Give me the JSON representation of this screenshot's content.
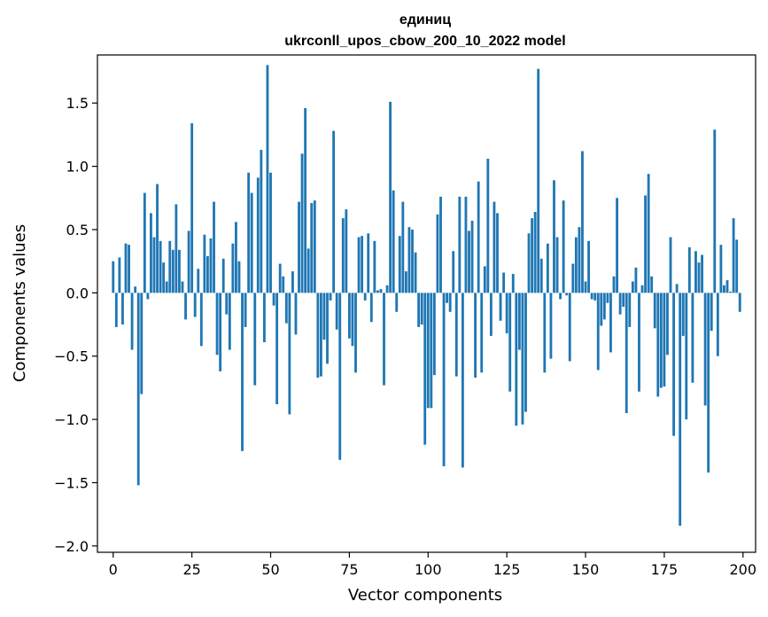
{
  "chart_data": {
    "type": "bar",
    "title": "единиц",
    "subtitle": "ukrconll_upos_cbow_200_10_2022 model",
    "xlabel": "Vector components",
    "ylabel": "Components values",
    "xlim": [
      -5,
      204
    ],
    "ylim": [
      -2.05,
      1.88
    ],
    "xticks": [
      0,
      25,
      50,
      75,
      100,
      125,
      150,
      175,
      200
    ],
    "yticks": [
      -2.0,
      -1.5,
      -1.0,
      -0.5,
      0.0,
      0.5,
      1.0,
      1.5
    ],
    "xtick_labels": [
      "0",
      "25",
      "50",
      "75",
      "100",
      "125",
      "150",
      "175",
      "200"
    ],
    "ytick_labels": [
      "−2.0",
      "−1.5",
      "−1.0",
      "−0.5",
      "0.0",
      "0.5",
      "1.0",
      "1.5"
    ],
    "bar_color": "#1f77b4",
    "grid": false,
    "values": [
      0.25,
      -0.27,
      0.28,
      -0.25,
      0.39,
      0.38,
      -0.45,
      0.05,
      -1.52,
      -0.8,
      0.79,
      -0.05,
      0.63,
      0.44,
      0.86,
      0.41,
      0.24,
      0.09,
      0.41,
      0.34,
      0.7,
      0.34,
      0.09,
      -0.21,
      0.49,
      1.34,
      -0.19,
      0.19,
      -0.42,
      0.46,
      0.29,
      0.43,
      0.72,
      -0.49,
      -0.62,
      0.27,
      -0.17,
      -0.45,
      0.39,
      0.56,
      0.25,
      -1.25,
      -0.27,
      0.95,
      0.79,
      -0.73,
      0.91,
      1.13,
      -0.39,
      1.8,
      0.95,
      -0.1,
      -0.88,
      0.23,
      0.13,
      -0.24,
      -0.96,
      0.17,
      -0.33,
      0.72,
      1.1,
      1.46,
      0.35,
      0.71,
      0.73,
      -0.67,
      -0.66,
      -0.37,
      -0.56,
      -0.06,
      1.28,
      -0.29,
      -1.32,
      0.59,
      0.66,
      -0.36,
      -0.42,
      -0.63,
      0.44,
      0.45,
      -0.06,
      0.47,
      -0.23,
      0.41,
      0.02,
      0.03,
      -0.73,
      0.06,
      1.51,
      0.81,
      -0.15,
      0.45,
      0.72,
      0.17,
      0.52,
      0.5,
      0.32,
      -0.27,
      -0.25,
      -1.2,
      -0.91,
      -0.91,
      -0.65,
      0.62,
      0.76,
      -1.37,
      -0.08,
      -0.15,
      0.33,
      -0.66,
      0.76,
      -1.38,
      0.76,
      0.49,
      0.57,
      -0.67,
      0.88,
      -0.63,
      0.21,
      1.06,
      -0.34,
      0.72,
      0.63,
      -0.22,
      0.16,
      -0.32,
      -0.78,
      0.15,
      -1.05,
      -0.45,
      -1.04,
      -0.94,
      0.47,
      0.59,
      0.64,
      1.77,
      0.27,
      -0.63,
      0.39,
      -0.52,
      0.89,
      0.44,
      -0.05,
      0.73,
      -0.02,
      -0.54,
      0.23,
      0.44,
      0.52,
      1.12,
      0.09,
      0.41,
      -0.05,
      -0.06,
      -0.61,
      -0.26,
      -0.21,
      -0.08,
      -0.47,
      0.13,
      0.75,
      -0.17,
      -0.11,
      -0.95,
      -0.27,
      0.09,
      0.2,
      -0.78,
      0.06,
      0.77,
      0.94,
      0.13,
      -0.28,
      -0.82,
      -0.75,
      -0.74,
      -0.49,
      0.44,
      -1.13,
      0.07,
      -1.84,
      -0.34,
      -1.0,
      0.36,
      -0.71,
      0.33,
      0.24,
      0.3,
      -0.89,
      -1.42,
      -0.3,
      1.29,
      -0.5,
      0.38,
      0.06,
      0.1,
      0.01,
      0.59,
      0.42,
      -0.15
    ]
  }
}
